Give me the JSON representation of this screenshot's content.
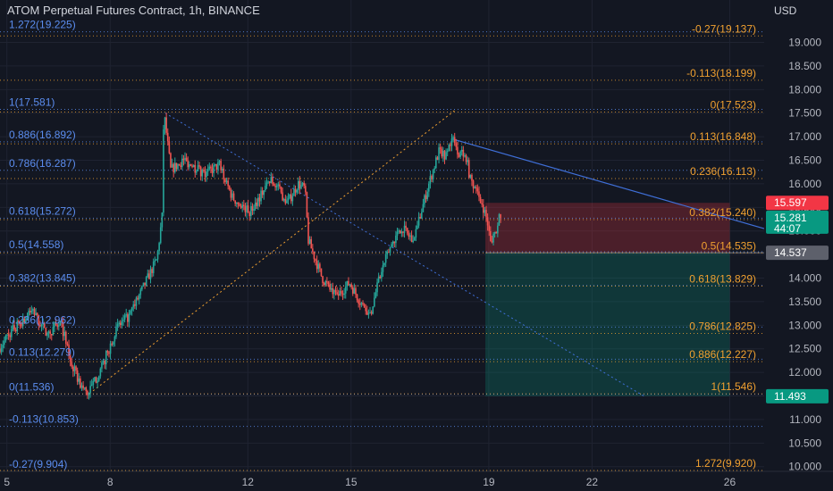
{
  "header": {
    "title": "ATOM Perpetual Futures Contract, 1h, BINANCE",
    "currency": "USD"
  },
  "colors": {
    "background": "#131722",
    "grid": "#1f2331",
    "up": "#26a69a",
    "down": "#ef5350",
    "fib_blue": "#5b8def",
    "fib_orange": "#f0a030",
    "trend_line": "#3f6fd8"
  },
  "chart_data": {
    "type": "candlestick",
    "title": "ATOM Perpetual Futures Contract, 1h, BINANCE",
    "xlabel": "",
    "ylabel": "USD",
    "ylim": [
      9.9,
      19.9
    ],
    "xlim": [
      4.8,
      27.0
    ],
    "grid": true,
    "x_ticks": [
      {
        "value": 5,
        "label": "5"
      },
      {
        "value": 8,
        "label": "8"
      },
      {
        "value": 12,
        "label": "12"
      },
      {
        "value": 15,
        "label": "15"
      },
      {
        "value": 19,
        "label": "19"
      },
      {
        "value": 22,
        "label": "22"
      },
      {
        "value": 26,
        "label": "26"
      }
    ],
    "y_ticks": [
      {
        "value": 10.0,
        "label": "10.000"
      },
      {
        "value": 10.5,
        "label": "10.500"
      },
      {
        "value": 11.0,
        "label": "11.000"
      },
      {
        "value": 11.5,
        "label": "11.500"
      },
      {
        "value": 12.0,
        "label": "12.000"
      },
      {
        "value": 12.5,
        "label": "12.500"
      },
      {
        "value": 13.0,
        "label": "13.000"
      },
      {
        "value": 13.5,
        "label": "13.500"
      },
      {
        "value": 14.0,
        "label": "14.000"
      },
      {
        "value": 14.5,
        "label": "14.500"
      },
      {
        "value": 15.0,
        "label": "15.000"
      },
      {
        "value": 15.5,
        "label": "15.500"
      },
      {
        "value": 16.0,
        "label": "16.000"
      },
      {
        "value": 16.5,
        "label": "16.500"
      },
      {
        "value": 17.0,
        "label": "17.000"
      },
      {
        "value": 17.5,
        "label": "17.500"
      },
      {
        "value": 18.0,
        "label": "18.000"
      },
      {
        "value": 18.5,
        "label": "18.500"
      },
      {
        "value": 19.0,
        "label": "19.000"
      }
    ],
    "price_path": [
      [
        4.8,
        12.5
      ],
      [
        5.2,
        12.9
      ],
      [
        5.8,
        13.3
      ],
      [
        6.2,
        12.8
      ],
      [
        6.6,
        13.1
      ],
      [
        6.9,
        12.2
      ],
      [
        7.2,
        11.7
      ],
      [
        7.4,
        11.55
      ],
      [
        7.8,
        12.1
      ],
      [
        8.2,
        12.9
      ],
      [
        8.6,
        13.2
      ],
      [
        9.0,
        13.8
      ],
      [
        9.4,
        14.4
      ],
      [
        9.55,
        15.3
      ],
      [
        9.6,
        17.55
      ],
      [
        9.8,
        16.3
      ],
      [
        10.2,
        16.5
      ],
      [
        10.8,
        16.2
      ],
      [
        11.2,
        16.4
      ],
      [
        11.6,
        15.7
      ],
      [
        12.1,
        15.4
      ],
      [
        12.7,
        16.1
      ],
      [
        13.2,
        15.6
      ],
      [
        13.5,
        16.0
      ],
      [
        13.7,
        15.9
      ],
      [
        13.8,
        14.8
      ],
      [
        14.2,
        14.0
      ],
      [
        14.6,
        13.6
      ],
      [
        15.0,
        13.9
      ],
      [
        15.3,
        13.5
      ],
      [
        15.6,
        13.25
      ],
      [
        15.9,
        14.1
      ],
      [
        16.2,
        14.7
      ],
      [
        16.5,
        15.1
      ],
      [
        16.8,
        14.8
      ],
      [
        17.0,
        15.2
      ],
      [
        17.3,
        16.0
      ],
      [
        17.6,
        16.7
      ],
      [
        17.8,
        16.6
      ],
      [
        17.95,
        16.95
      ],
      [
        18.2,
        16.6
      ],
      [
        18.35,
        16.7
      ],
      [
        18.5,
        16.1
      ],
      [
        18.8,
        15.7
      ],
      [
        19.0,
        15.2
      ],
      [
        19.1,
        14.7
      ],
      [
        19.2,
        14.95
      ],
      [
        19.35,
        15.3
      ]
    ],
    "fib_left": [
      {
        "value": 19.225,
        "label": "1.272(19.225)"
      },
      {
        "value": 17.581,
        "label": "1(17.581)"
      },
      {
        "value": 16.892,
        "label": "0.886(16.892)"
      },
      {
        "value": 16.287,
        "label": "0.786(16.287)"
      },
      {
        "value": 15.272,
        "label": "0.618(15.272)"
      },
      {
        "value": 14.558,
        "label": "0.5(14.558)"
      },
      {
        "value": 13.845,
        "label": "0.382(13.845)"
      },
      {
        "value": 12.962,
        "label": "0.236(12.962)"
      },
      {
        "value": 12.279,
        "label": "0.113(12.279)"
      },
      {
        "value": 11.536,
        "label": "0(11.536)"
      },
      {
        "value": 10.853,
        "label": "-0.113(10.853)"
      },
      {
        "value": 9.904,
        "label": "-0.27(9.904)"
      }
    ],
    "fib_right": [
      {
        "value": 19.137,
        "label": "-0.27(19.137)"
      },
      {
        "value": 18.199,
        "label": "-0.113(18.199)"
      },
      {
        "value": 17.523,
        "label": "0(17.523)"
      },
      {
        "value": 16.848,
        "label": "0.113(16.848)"
      },
      {
        "value": 16.113,
        "label": "0.236(16.113)"
      },
      {
        "value": 15.24,
        "label": "0.382(15.240)"
      },
      {
        "value": 14.535,
        "label": "0.5(14.535)"
      },
      {
        "value": 13.829,
        "label": "0.618(13.829)"
      },
      {
        "value": 12.825,
        "label": "0.786(12.825)"
      },
      {
        "value": 12.227,
        "label": "0.886(12.227)"
      },
      {
        "value": 11.546,
        "label": "1(11.546)"
      },
      {
        "value": 9.92,
        "label": "1.272(9.920)"
      }
    ],
    "trend_lines": [
      {
        "from": [
          7.4,
          11.55
        ],
        "to": [
          18.0,
          17.55
        ],
        "style": "dotted",
        "color": "orange"
      },
      {
        "from": [
          9.6,
          17.5
        ],
        "to": [
          23.5,
          11.5
        ],
        "style": "dotted",
        "color": "blue"
      },
      {
        "from": [
          17.95,
          16.95
        ],
        "to": [
          27.0,
          15.05
        ],
        "style": "solid",
        "color": "blue"
      }
    ],
    "position": {
      "x_start": 18.9,
      "x_end": 26.0,
      "stop": 15.597,
      "entry": 14.537,
      "target": 11.493
    },
    "price_labels": [
      {
        "value": 15.597,
        "text": "15.597",
        "color": "#f23645"
      },
      {
        "value": 15.281,
        "text": "15.281",
        "sub": "44:07",
        "color": "#089981"
      },
      {
        "value": 14.537,
        "text": "14.537",
        "color": "#5d606b"
      },
      {
        "value": 11.493,
        "text": "11.493",
        "color": "#089981"
      }
    ]
  }
}
